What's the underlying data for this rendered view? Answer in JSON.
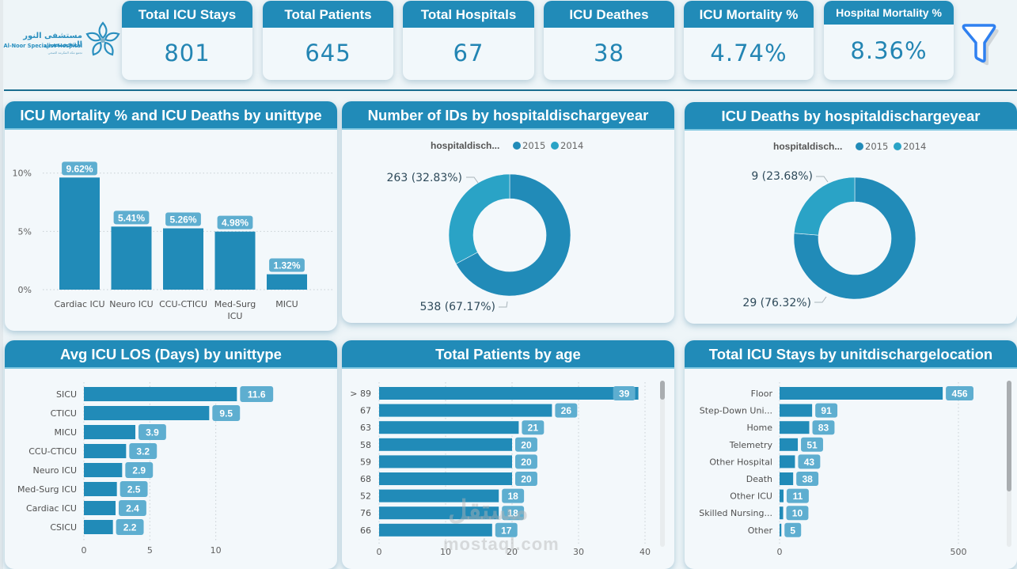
{
  "logo": {
    "arabic_name": "مستشفى النور التخصصي",
    "english_name": "Al-Noor Specialist Hospital",
    "tagline": "تجمع مكة المكرمة الصحي"
  },
  "kpis": [
    {
      "title": "Total ICU Stays",
      "value": "801"
    },
    {
      "title": "Total Patients",
      "value": "645"
    },
    {
      "title": "Total Hospitals",
      "value": "67"
    },
    {
      "title": "ICU Deathes",
      "value": "38"
    },
    {
      "title": "ICU Mortality %",
      "value": "4.74%"
    },
    {
      "title": "Hospital Mortality %",
      "value": "8.36%"
    }
  ],
  "filter": {
    "icon": "funnel-filter-icon",
    "color": "#2f80f0"
  },
  "colors": {
    "primary": "#218bb8",
    "secondary": "#2aa3c6",
    "label_bg": "#5eaed0",
    "header_line": "#1b6e90"
  },
  "panels": {
    "mortality": {
      "title": "ICU Mortality % and ICU Deaths by unittype"
    },
    "ids_year": {
      "title": "Number of IDs by hospitaldischargeyear"
    },
    "deaths_year": {
      "title": "ICU Deaths by hospitaldischargeyear"
    },
    "los": {
      "title": "Avg ICU LOS (Days) by unittype"
    },
    "age": {
      "title": "Total Patients by age"
    },
    "discharge": {
      "title": "Total ICU Stays by unitdischargelocation"
    }
  },
  "watermark": {
    "line1": "مستقل",
    "line2": "mostaql.com"
  },
  "chart_data": [
    {
      "id": "mortality",
      "type": "bar",
      "title": "ICU Mortality % and ICU Deaths by unittype",
      "categories": [
        "Cardiac ICU",
        "Neuro ICU",
        "CCU-CTICU",
        "Med-Surg ICU",
        "MICU"
      ],
      "values": [
        9.62,
        5.41,
        5.26,
        4.98,
        1.32
      ],
      "data_labels": [
        "9.62%",
        "5.41%",
        "5.26%",
        "4.98%",
        "1.32%"
      ],
      "ylim": [
        0,
        11
      ],
      "yticks": [
        0,
        5,
        10
      ],
      "ytick_labels": [
        "0%",
        "5%",
        "10%"
      ],
      "grid": true
    },
    {
      "id": "ids_year",
      "type": "pie",
      "title": "Number of IDs by hospitaldischargeyear",
      "legend_title": "hospitaldisch...",
      "legend_position": "top-center",
      "slices": [
        {
          "label": "2015",
          "value": 538,
          "text": "538 (67.17%)"
        },
        {
          "label": "2014",
          "value": 263,
          "text": "263 (32.83%)"
        }
      ]
    },
    {
      "id": "deaths_year",
      "type": "pie",
      "title": "ICU Deaths by hospitaldischargeyear",
      "legend_title": "hospitaldisch...",
      "legend_position": "top-center",
      "slices": [
        {
          "label": "2015",
          "value": 29,
          "text": "29 (76.32%)"
        },
        {
          "label": "2014",
          "value": 9,
          "text": "9 (23.68%)"
        }
      ]
    },
    {
      "id": "los",
      "type": "bar",
      "orientation": "horizontal",
      "title": "Avg ICU LOS (Days) by unittype",
      "categories": [
        "SICU",
        "CTICU",
        "MICU",
        "CCU-CTICU",
        "Neuro ICU",
        "Med-Surg ICU",
        "Cardiac ICU",
        "CSICU"
      ],
      "values": [
        11.6,
        9.5,
        3.9,
        3.2,
        2.9,
        2.5,
        2.4,
        2.2
      ],
      "xlim": [
        0,
        15
      ],
      "xticks": [
        0,
        5,
        10
      ],
      "grid": true
    },
    {
      "id": "age",
      "type": "bar",
      "orientation": "horizontal",
      "title": "Total Patients by age",
      "categories": [
        "> 89",
        "67",
        "63",
        "58",
        "59",
        "68",
        "52",
        "76",
        "66"
      ],
      "values": [
        39,
        26,
        21,
        20,
        20,
        20,
        18,
        18,
        17
      ],
      "xlim": [
        0,
        40
      ],
      "xticks": [
        0,
        10,
        20,
        30,
        40
      ],
      "grid": true,
      "scrollbar": true
    },
    {
      "id": "discharge",
      "type": "bar",
      "orientation": "horizontal",
      "title": "Total ICU Stays by unitdischargelocation",
      "categories": [
        "Floor",
        "Step-Down Uni...",
        "Home",
        "Telemetry",
        "Other Hospital",
        "Death",
        "Other ICU",
        "Skilled Nursing...",
        "Other"
      ],
      "values": [
        456,
        91,
        83,
        51,
        43,
        38,
        11,
        10,
        5
      ],
      "xlim": [
        0,
        600
      ],
      "xticks": [
        0,
        500
      ],
      "grid": true,
      "scrollbar": true
    }
  ]
}
